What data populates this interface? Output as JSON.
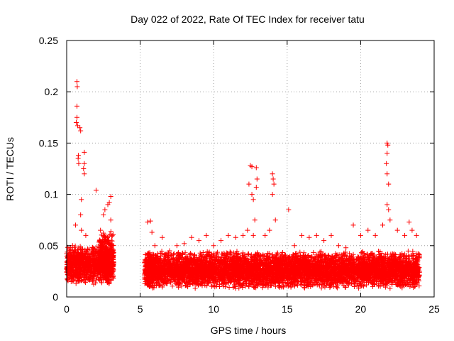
{
  "chart_data": {
    "type": "scatter",
    "title": "Day 022 of 2022, Rate Of TEC Index for receiver tatu",
    "xlabel": "GPS time / hours",
    "ylabel": "ROTI / TECUs",
    "xlim": [
      0,
      25
    ],
    "ylim": [
      0,
      0.25
    ],
    "grid": true,
    "x_ticks": [
      0,
      5,
      10,
      15,
      20,
      25
    ],
    "x_tick_labels": [
      "0",
      "5",
      "10",
      "15",
      "20",
      "25"
    ],
    "y_ticks": [
      0,
      0.05,
      0.1,
      0.15,
      0.2,
      0.25
    ],
    "y_tick_labels": [
      "0",
      "0.05",
      "0.1",
      "0.15",
      "0.2",
      "0.25"
    ],
    "marker": "+",
    "marker_color": "#ff0000",
    "data_gap_hours": [
      3.2,
      5.3
    ],
    "series": [
      {
        "name": "ROTI",
        "points": [
          [
            0.2,
            0.045
          ],
          [
            0.4,
            0.05
          ],
          [
            0.6,
            0.07
          ],
          [
            0.7,
            0.21
          ],
          [
            0.72,
            0.205
          ],
          [
            0.7,
            0.186
          ],
          [
            0.65,
            0.17
          ],
          [
            0.75,
            0.167
          ],
          [
            0.7,
            0.175
          ],
          [
            0.9,
            0.165
          ],
          [
            0.95,
            0.162
          ],
          [
            0.8,
            0.138
          ],
          [
            0.78,
            0.135
          ],
          [
            0.82,
            0.13
          ],
          [
            1.2,
            0.141
          ],
          [
            1.2,
            0.13
          ],
          [
            1.15,
            0.125
          ],
          [
            1.2,
            0.12
          ],
          [
            1.0,
            0.095
          ],
          [
            0.95,
            0.08
          ],
          [
            1.0,
            0.065
          ],
          [
            1.3,
            0.06
          ],
          [
            1.7,
            0.045
          ],
          [
            2.0,
            0.104
          ],
          [
            2.3,
            0.065
          ],
          [
            2.5,
            0.08
          ],
          [
            2.6,
            0.085
          ],
          [
            2.8,
            0.09
          ],
          [
            3.0,
            0.098
          ],
          [
            2.9,
            0.092
          ],
          [
            3.0,
            0.075
          ],
          [
            3.1,
            0.05
          ],
          [
            5.5,
            0.073
          ],
          [
            5.7,
            0.074
          ],
          [
            5.8,
            0.063
          ],
          [
            6.0,
            0.05
          ],
          [
            6.5,
            0.058
          ],
          [
            7.0,
            0.045
          ],
          [
            7.5,
            0.05
          ],
          [
            8.0,
            0.052
          ],
          [
            8.5,
            0.058
          ],
          [
            9.0,
            0.055
          ],
          [
            9.5,
            0.06
          ],
          [
            10.0,
            0.05
          ],
          [
            10.5,
            0.055
          ],
          [
            11.0,
            0.06
          ],
          [
            11.5,
            0.058
          ],
          [
            12.0,
            0.06
          ],
          [
            12.3,
            0.065
          ],
          [
            12.4,
            0.11
          ],
          [
            12.5,
            0.128
          ],
          [
            12.6,
            0.127
          ],
          [
            12.6,
            0.1
          ],
          [
            12.7,
            0.095
          ],
          [
            12.8,
            0.075
          ],
          [
            12.9,
            0.126
          ],
          [
            12.95,
            0.115
          ],
          [
            12.9,
            0.107
          ],
          [
            12.7,
            0.06
          ],
          [
            13.5,
            0.06
          ],
          [
            14.0,
            0.12
          ],
          [
            14.05,
            0.115
          ],
          [
            14.1,
            0.11
          ],
          [
            14.0,
            0.1
          ],
          [
            14.2,
            0.075
          ],
          [
            13.8,
            0.065
          ],
          [
            15.1,
            0.085
          ],
          [
            15.5,
            0.05
          ],
          [
            16.0,
            0.06
          ],
          [
            16.5,
            0.058
          ],
          [
            17.0,
            0.06
          ],
          [
            17.5,
            0.055
          ],
          [
            18.0,
            0.06
          ],
          [
            18.5,
            0.05
          ],
          [
            19.0,
            0.048
          ],
          [
            19.5,
            0.07
          ],
          [
            20.0,
            0.06
          ],
          [
            20.5,
            0.065
          ],
          [
            21.0,
            0.06
          ],
          [
            21.5,
            0.07
          ],
          [
            21.8,
            0.15
          ],
          [
            21.85,
            0.148
          ],
          [
            21.8,
            0.14
          ],
          [
            21.75,
            0.13
          ],
          [
            21.8,
            0.12
          ],
          [
            21.9,
            0.11
          ],
          [
            21.8,
            0.09
          ],
          [
            21.9,
            0.085
          ],
          [
            22.0,
            0.075
          ],
          [
            22.5,
            0.065
          ],
          [
            23.0,
            0.06
          ],
          [
            23.3,
            0.073
          ],
          [
            23.5,
            0.065
          ],
          [
            23.8,
            0.06
          ],
          [
            24.0,
            0.04
          ]
        ],
        "dense_bands": [
          {
            "x_range": [
              0.0,
              3.2
            ],
            "y_range": [
              0.012,
              0.05
            ]
          },
          {
            "x_range": [
              2.2,
              3.2
            ],
            "y_range": [
              0.012,
              0.065
            ]
          },
          {
            "x_range": [
              5.3,
              24.0
            ],
            "y_range": [
              0.008,
              0.045
            ]
          }
        ]
      }
    ]
  }
}
